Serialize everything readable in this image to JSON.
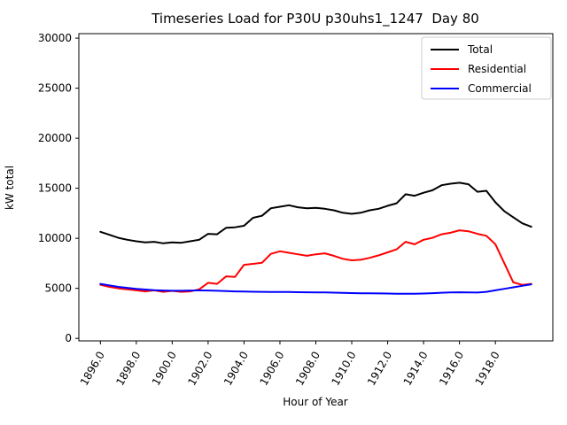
{
  "chart_data": {
    "type": "line",
    "title": "Timeseries Load for P30U p30uhs1_1247  Day 80",
    "xlabel": "Hour of Year",
    "ylabel": "kW total",
    "background": "#ffffff",
    "axes_color": "#000000",
    "grid": false,
    "legend_position": "upper right",
    "xlim": [
      1894.8,
      1921.2
    ],
    "ylim": [
      -250,
      30450
    ],
    "x_ticks": [
      1896,
      1898,
      1900,
      1902,
      1904,
      1906,
      1908,
      1910,
      1912,
      1914,
      1916,
      1918
    ],
    "x_tick_labels": [
      "1896.0",
      "1898.0",
      "1900.0",
      "1902.0",
      "1904.0",
      "1906.0",
      "1908.0",
      "1910.0",
      "1912.0",
      "1914.0",
      "1916.0",
      "1918.0"
    ],
    "y_ticks": [
      0,
      5000,
      10000,
      15000,
      20000,
      25000,
      30000
    ],
    "y_tick_labels": [
      "0",
      "5000",
      "10000",
      "15000",
      "20000",
      "25000",
      "30000"
    ],
    "x": [
      1896.0,
      1896.5,
      1897.0,
      1897.5,
      1898.0,
      1898.5,
      1899.0,
      1899.5,
      1900.0,
      1900.5,
      1901.0,
      1901.5,
      1902.0,
      1902.5,
      1903.0,
      1903.5,
      1904.0,
      1904.5,
      1905.0,
      1905.5,
      1906.0,
      1906.5,
      1907.0,
      1907.5,
      1908.0,
      1908.5,
      1909.0,
      1909.5,
      1910.0,
      1910.5,
      1911.0,
      1911.5,
      1912.0,
      1912.5,
      1913.0,
      1913.5,
      1914.0,
      1914.5,
      1915.0,
      1915.5,
      1916.0,
      1916.5,
      1917.0,
      1917.5,
      1918.0,
      1918.5,
      1919.0,
      1919.5,
      1920.0
    ],
    "series": [
      {
        "name": "Total",
        "color": "#000000",
        "values": [
          10650,
          10350,
          10050,
          9850,
          9700,
          9600,
          9650,
          9500,
          9600,
          9550,
          9700,
          9850,
          10450,
          10400,
          11050,
          11100,
          11250,
          12050,
          12250,
          13000,
          13150,
          13300,
          13100,
          13000,
          13050,
          12950,
          12800,
          12550,
          12450,
          12550,
          12800,
          12950,
          13250,
          13500,
          14400,
          14250,
          14550,
          14800,
          15300,
          15450,
          15550,
          15400,
          14650,
          14750,
          13600,
          12700,
          12100,
          11500,
          11150
        ]
      },
      {
        "name": "Residential",
        "color": "#ff0000",
        "values": [
          5350,
          5150,
          5000,
          4900,
          4800,
          4700,
          4800,
          4650,
          4750,
          4650,
          4700,
          4900,
          5550,
          5450,
          6200,
          6150,
          7350,
          7450,
          7550,
          8450,
          8700,
          8550,
          8400,
          8250,
          8400,
          8500,
          8250,
          7950,
          7800,
          7850,
          8050,
          8300,
          8600,
          8900,
          9650,
          9400,
          9850,
          10050,
          10400,
          10550,
          10800,
          10700,
          10450,
          10250,
          9400,
          7500,
          5600,
          5350,
          5450
        ]
      },
      {
        "name": "Commercial",
        "color": "#0000ff",
        "values": [
          5450,
          5300,
          5150,
          5050,
          4950,
          4880,
          4820,
          4780,
          4760,
          4760,
          4780,
          4790,
          4780,
          4760,
          4730,
          4700,
          4680,
          4660,
          4650,
          4640,
          4640,
          4630,
          4620,
          4610,
          4600,
          4590,
          4570,
          4550,
          4530,
          4510,
          4500,
          4490,
          4480,
          4470,
          4460,
          4460,
          4480,
          4520,
          4560,
          4590,
          4610,
          4600,
          4580,
          4650,
          4800,
          4950,
          5100,
          5250,
          5400
        ]
      }
    ]
  }
}
